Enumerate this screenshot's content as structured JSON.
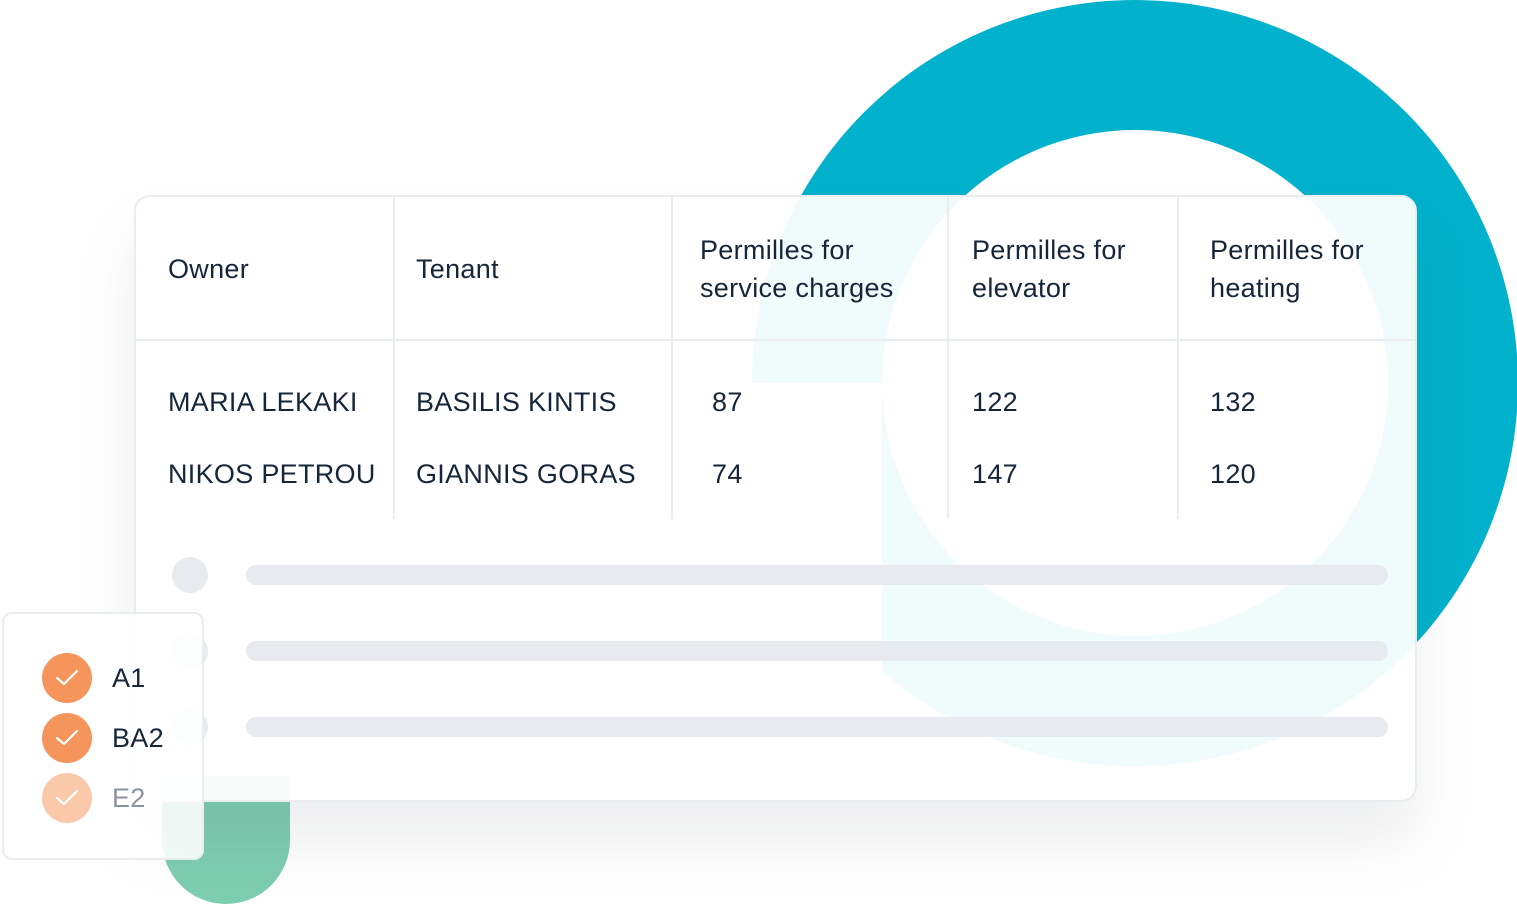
{
  "colors": {
    "ring": "#02b1cb",
    "green": "#7dcdb1",
    "check_active": "#f5945b",
    "check_faded": "#fac9aa",
    "text": "#15263a"
  },
  "table": {
    "headers": {
      "owner": "Owner",
      "tenant": "Tenant",
      "service_l1": "Permilles for",
      "service_l2": "service charges",
      "elevator_l1": "Permilles for",
      "elevator_l2": "elevator",
      "heating_l1": "Permilles for",
      "heating_l2": "heating"
    },
    "rows": [
      {
        "owner": "MARIA LEKAKI",
        "tenant": "BASILIS KINTIS",
        "service": "87",
        "elevator": "122",
        "heating": "132"
      },
      {
        "owner": "NIKOS PETROU",
        "tenant": "GIANNIS GORAS",
        "service": "74",
        "elevator": "147",
        "heating": "120"
      }
    ]
  },
  "checklist": {
    "items": [
      {
        "label": "A1",
        "icon": "check-icon",
        "state": "checked"
      },
      {
        "label": "BA2",
        "icon": "check-icon",
        "state": "checked"
      },
      {
        "label": "E2",
        "icon": "check-icon",
        "state": "faded"
      }
    ]
  }
}
